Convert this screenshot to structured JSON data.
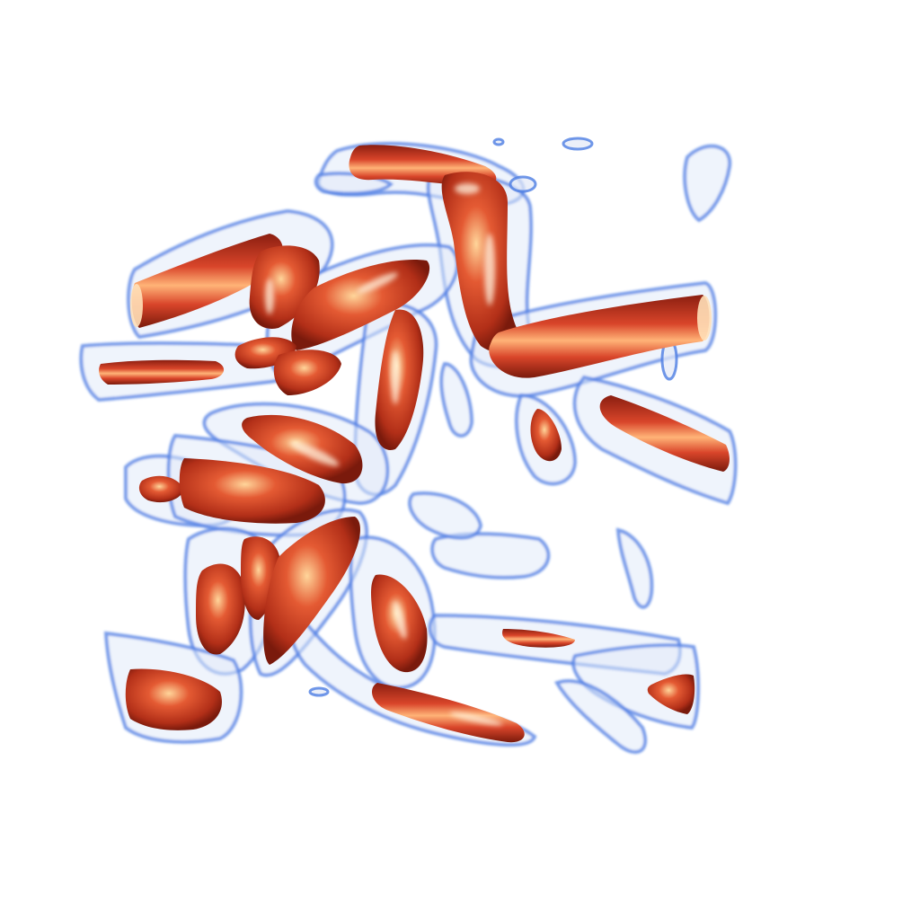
{
  "scene": {
    "background_color": "#ffffff",
    "outer_isosurface_color": "#3a6fe0",
    "outer_isosurface_fill": "#dfe7f7",
    "inner_isosurface_color": "#d9452a",
    "inner_highlight_color": "#ffd59a",
    "inner_shadow_color": "#8a1e10"
  }
}
